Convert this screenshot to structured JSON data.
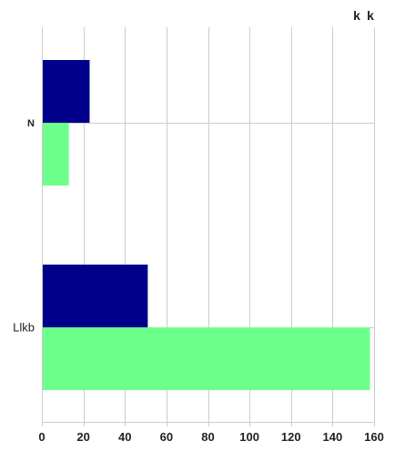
{
  "chart_data": {
    "type": "bar",
    "orientation": "horizontal",
    "categories": [
      "N",
      "Llkb"
    ],
    "series": [
      {
        "name": "k",
        "color": "#00008b",
        "values": [
          23,
          51
        ]
      },
      {
        "name": "k",
        "color": "#6cff8c",
        "values": [
          13,
          158
        ]
      }
    ],
    "xlim": [
      0,
      160
    ],
    "x_ticks": [
      0,
      20,
      40,
      60,
      80,
      100,
      120,
      140,
      160
    ],
    "grid": true,
    "legend_position": "top-right",
    "title": "",
    "xlabel": "",
    "ylabel": ""
  }
}
